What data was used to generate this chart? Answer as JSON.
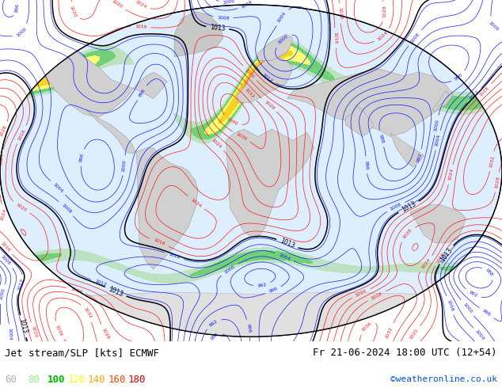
{
  "title_left": "Jet stream/SLP [kts] ECMWF",
  "title_right": "Fr 21-06-2024 18:00 UTC (12+54)",
  "credit": "©weatheronline.co.uk",
  "legend_values": [
    60,
    80,
    100,
    120,
    140,
    160,
    180
  ],
  "legend_colors": [
    "#b0b0b0",
    "#90ee90",
    "#00bb00",
    "#ffff00",
    "#ffa500",
    "#ff4500",
    "#dd0000"
  ],
  "bg_color": "#ffffff",
  "ocean_color": "#ddeeff",
  "land_color": "#d8d8d8",
  "fig_width": 6.34,
  "fig_height": 4.9,
  "dpi": 100
}
